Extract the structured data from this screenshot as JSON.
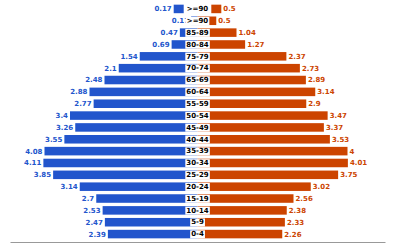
{
  "chart_data": {
    "type": "pyramid",
    "orientation": "horizontal",
    "categories": [
      ">=90",
      "85-89",
      "80-84",
      "75-79",
      "70-74",
      "65-69",
      "60-64",
      "55-59",
      "50-54",
      "45-49",
      "40-44",
      "35-39",
      "30-34",
      "25-29",
      "20-24",
      "15-19",
      "10-14",
      "5-9",
      "0-4"
    ],
    "series": [
      {
        "color": "#2255cc",
        "values": [
          0.17,
          0.47,
          0.69,
          1.54,
          2.1,
          2.48,
          2.88,
          2.77,
          3.4,
          3.26,
          3.55,
          4.08,
          4.11,
          3.85,
          3.14,
          2.7,
          2.53,
          2.47,
          2.39
        ]
      },
      {
        "color": "#cc4400",
        "values": [
          0.5,
          1.04,
          1.27,
          2.37,
          2.73,
          2.89,
          3.14,
          2.9,
          3.47,
          3.37,
          3.53,
          4.0,
          4.01,
          3.75,
          3.02,
          2.56,
          2.38,
          2.33,
          2.26
        ]
      }
    ],
    "xlim": [
      -5,
      5
    ],
    "xticks": [],
    "data_labels": true,
    "tick_labels": "y",
    "grid": false
  }
}
